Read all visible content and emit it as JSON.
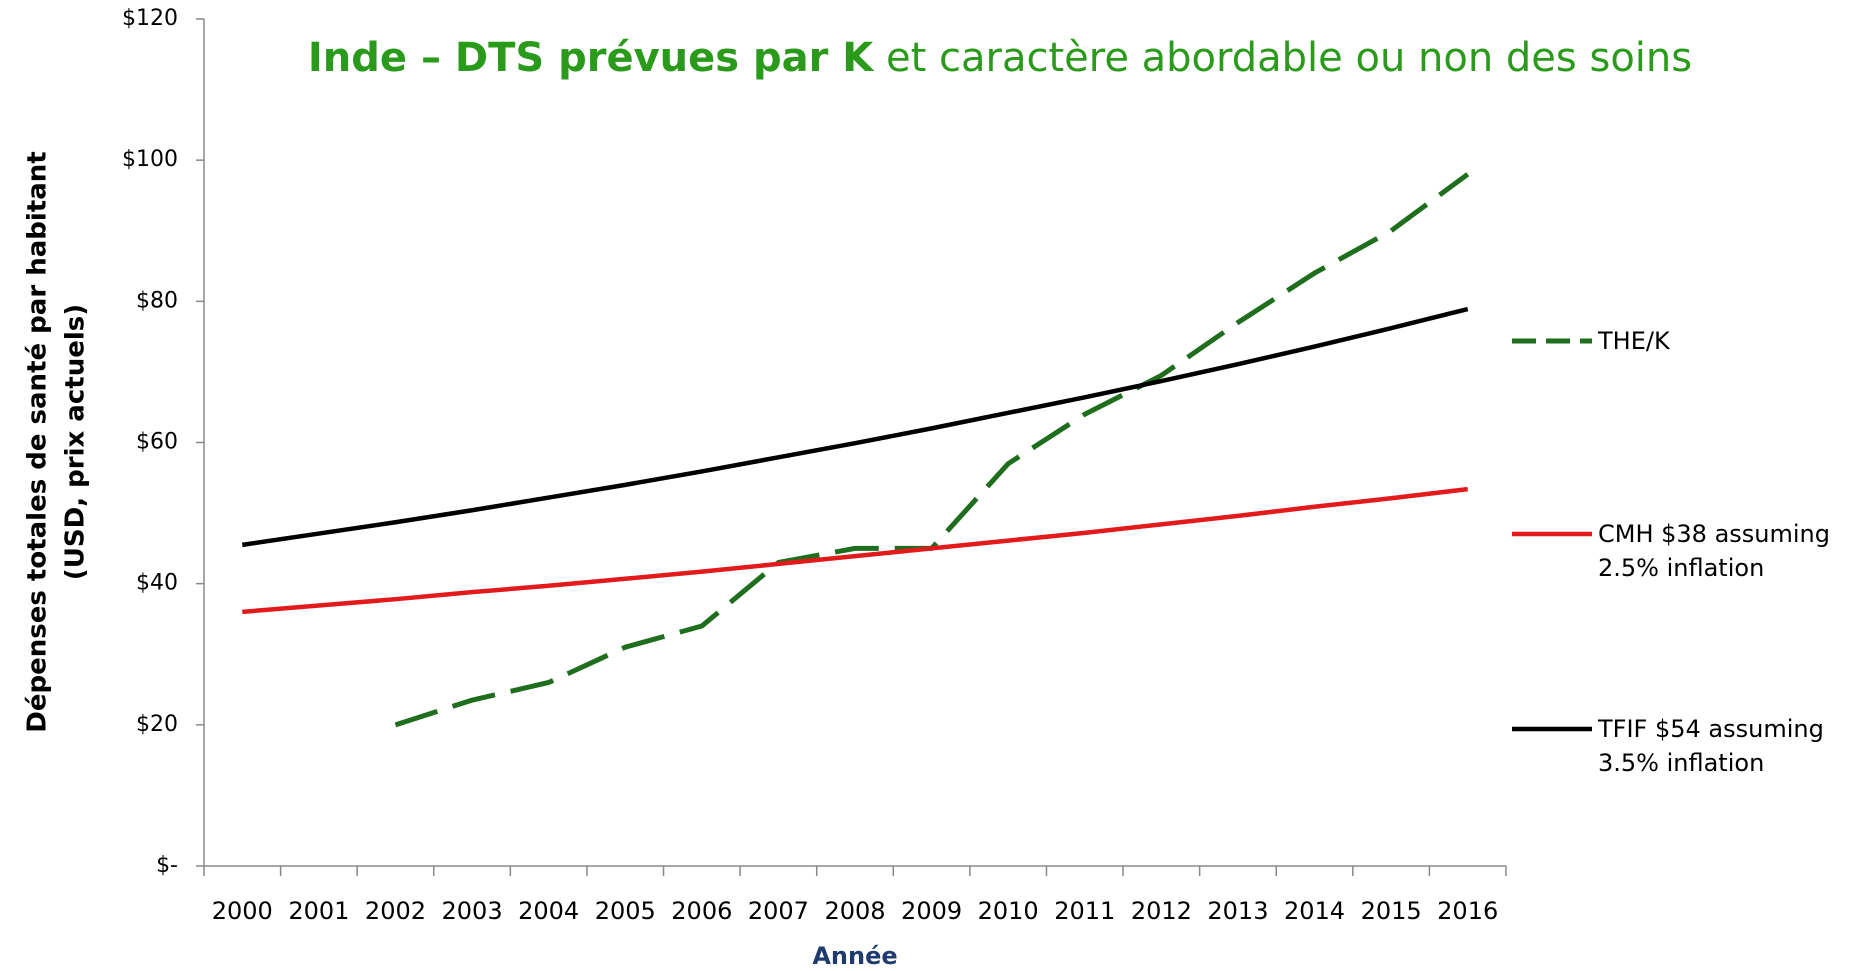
{
  "chart_data": {
    "type": "line",
    "title": "Inde – DTS prévues par K",
    "subtitle": " et caractère abordable ou non des soins",
    "xlabel": "Année",
    "ylabel": [
      "Dépenses totales de santé par habitant",
      "(USD, prix actuels)"
    ],
    "categories": [
      "2000",
      "2001",
      "2002",
      "2003",
      "2004",
      "2005",
      "2006",
      "2007",
      "2008",
      "2009",
      "2010",
      "2011",
      "2012",
      "2013",
      "2014",
      "2015",
      "2016"
    ],
    "series": [
      {
        "name": "THE/K",
        "color": "#1e6e1e",
        "dashed": true,
        "values": [
          null,
          null,
          20,
          23.5,
          26,
          31,
          34,
          43,
          45,
          45,
          57,
          64,
          69.5,
          77,
          84,
          90,
          98
        ]
      },
      {
        "name": "CMH $38 assuming 2.5% inflation",
        "color": "#e31a1c",
        "dashed": false,
        "values": [
          36,
          36.9,
          37.8,
          38.8,
          39.7,
          40.7,
          41.7,
          42.8,
          43.9,
          45.0,
          46.1,
          47.2,
          48.4,
          49.6,
          50.9,
          52.1,
          53.4
        ]
      },
      {
        "name": "TFIF $54 assuming 3.5% inflation",
        "color": "#000000",
        "dashed": false,
        "values": [
          45.5,
          47.1,
          48.7,
          50.4,
          52.2,
          54.0,
          55.9,
          57.9,
          59.9,
          62.0,
          64.2,
          66.4,
          68.7,
          71.1,
          73.6,
          76.2,
          78.9
        ]
      }
    ],
    "ylim": [
      0,
      120
    ],
    "yticks": [
      {
        "value": 0,
        "label": "$-"
      },
      {
        "value": 20,
        "label": "$20"
      },
      {
        "value": 40,
        "label": "$40"
      },
      {
        "value": 60,
        "label": "$60"
      },
      {
        "value": 80,
        "label": "$80"
      },
      {
        "value": 100,
        "label": "$100"
      },
      {
        "value": 120,
        "label": "$120"
      }
    ],
    "grid": false,
    "legend": "right"
  }
}
